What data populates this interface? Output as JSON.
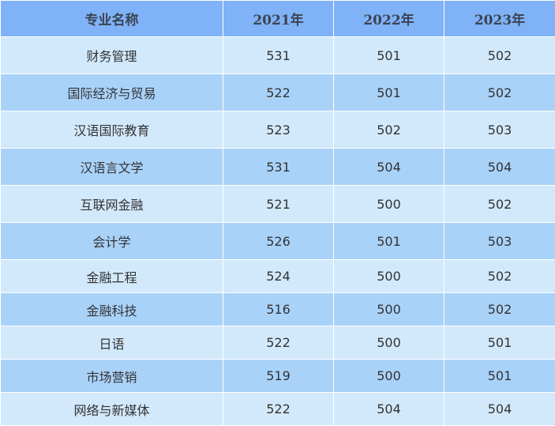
{
  "header": {
    "col_major": "专业名称",
    "col_2021": "2021年",
    "col_2022": "2022年",
    "col_2023": "2023年"
  },
  "rows": [
    {
      "major": "财务管理",
      "y2021": "531",
      "y2022": "501",
      "y2023": "502"
    },
    {
      "major": "国际经济与贸易",
      "y2021": "522",
      "y2022": "501",
      "y2023": "502"
    },
    {
      "major": "汉语国际教育",
      "y2021": "523",
      "y2022": "502",
      "y2023": "503"
    },
    {
      "major": "汉语言文学",
      "y2021": "531",
      "y2022": "504",
      "y2023": "504"
    },
    {
      "major": "互联网金融",
      "y2021": "521",
      "y2022": "500",
      "y2023": "502"
    },
    {
      "major": "会计学",
      "y2021": "526",
      "y2022": "501",
      "y2023": "503"
    },
    {
      "major": "金融工程",
      "y2021": "524",
      "y2022": "500",
      "y2023": "502"
    },
    {
      "major": "金融科技",
      "y2021": "516",
      "y2022": "500",
      "y2023": "502"
    },
    {
      "major": "日语",
      "y2021": "522",
      "y2022": "500",
      "y2023": "501"
    },
    {
      "major": "市场营销",
      "y2021": "519",
      "y2022": "500",
      "y2023": "501"
    },
    {
      "major": "网络与新媒体",
      "y2021": "522",
      "y2022": "504",
      "y2023": "504"
    }
  ],
  "colors": {
    "header_bg": "#7fb2f6",
    "row_light": "#d2e9fc",
    "row_dark": "#a9d2f9"
  }
}
